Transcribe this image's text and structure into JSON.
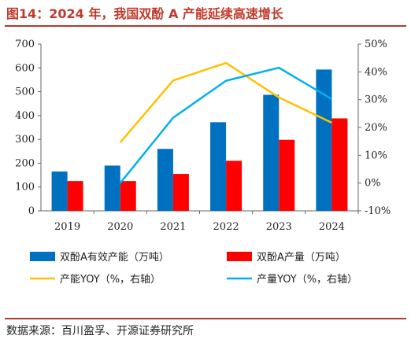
{
  "header": {
    "title": "图14：2024 年，我国双酚 A 产能延续高速增长"
  },
  "footer": {
    "source": "数据来源：百川盈孚、开源证券研究所"
  },
  "colors": {
    "title": "#c0392b",
    "rule": "#b03a2e"
  },
  "chart_data": {
    "type": "bar",
    "categories": [
      "2019",
      "2020",
      "2021",
      "2022",
      "2023",
      "2024"
    ],
    "series": [
      {
        "name": "双酚A有效产能（万吨）",
        "kind": "bar",
        "axis": "left",
        "color": "#0070C0",
        "values": [
          165,
          190,
          260,
          372,
          487,
          593
        ]
      },
      {
        "name": "双酚A产量（万吨）",
        "kind": "bar",
        "axis": "left",
        "color": "#FF0000",
        "values": [
          125,
          125,
          155,
          210,
          298,
          388
        ]
      },
      {
        "name": "产能YOY（%，右轴）",
        "kind": "line",
        "axis": "right",
        "color": "#FFC000",
        "values": [
          null,
          14.6,
          36.9,
          43.2,
          30.8,
          21.7
        ]
      },
      {
        "name": "产量YOY（%，右轴）",
        "kind": "line",
        "axis": "right",
        "color": "#00B0F0",
        "values": [
          null,
          0.0,
          23.5,
          36.8,
          41.5,
          30.2
        ]
      }
    ],
    "ylim": [
      0,
      700
    ],
    "yticks": [
      0,
      100,
      200,
      300,
      400,
      500,
      600,
      700
    ],
    "y2lim": [
      -10,
      50
    ],
    "y2ticks": [
      -10,
      0,
      10,
      20,
      30,
      40,
      50
    ],
    "y2_tick_labels": [
      "-10%",
      "0%",
      "10%",
      "20%",
      "30%",
      "40%",
      "50%"
    ],
    "legend_position": "bottom",
    "grid": false
  }
}
